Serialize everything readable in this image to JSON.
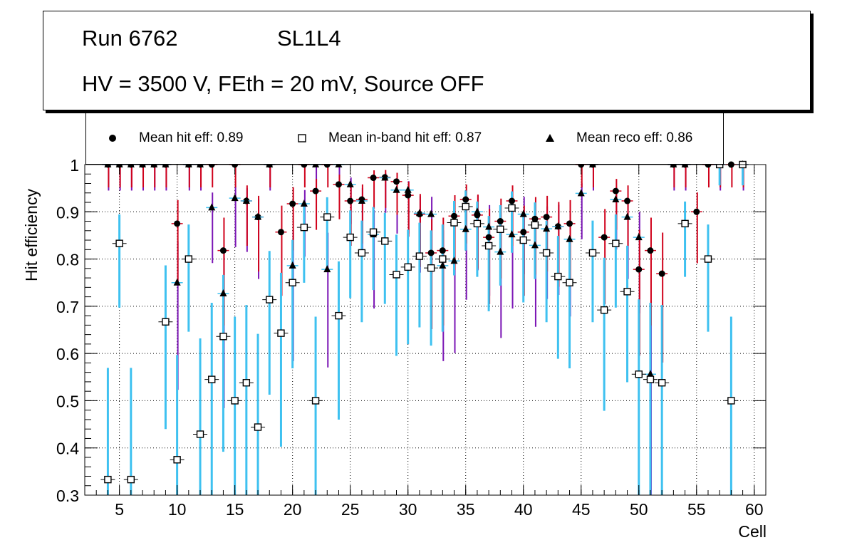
{
  "header": {
    "run": "Run 6762",
    "layer": "SL1L4",
    "conditions": "HV = 3500 V, FEth = 20 mV, Source OFF"
  },
  "legend": {
    "hit": "Mean hit  eff: 0.89",
    "inband": "Mean in-band hit eff: 0.87",
    "reco": "Mean reco eff: 0.86"
  },
  "chart_data": {
    "type": "scatter",
    "title": "",
    "xlabel": "Cell",
    "ylabel": "Hit efficiency",
    "xlim": [
      2,
      61
    ],
    "ylim": [
      0.3,
      1.0
    ],
    "x_ticks": [
      5,
      10,
      15,
      20,
      25,
      30,
      35,
      40,
      45,
      50,
      55,
      60
    ],
    "y_ticks": [
      0.3,
      0.4,
      0.5,
      0.6,
      0.7,
      0.8,
      0.9,
      1
    ],
    "grid": true,
    "colors": {
      "hit_err": "#d0021b",
      "inband_err": "#3ec1f0",
      "reco_err": "#7b15b5",
      "marker": "#000000",
      "marker_fill": "#ffffff"
    },
    "series": [
      {
        "name": "Mean hit eff",
        "marker": "circle",
        "x": [
          4,
          5,
          6,
          7,
          8,
          9,
          10,
          11,
          12,
          13,
          14,
          15,
          16,
          17,
          18,
          19,
          20,
          21,
          22,
          23,
          24,
          25,
          26,
          27,
          28,
          29,
          30,
          31,
          32,
          33,
          34,
          35,
          36,
          37,
          38,
          39,
          40,
          41,
          42,
          43,
          44,
          45,
          46,
          47,
          48,
          49,
          50,
          51,
          52,
          53,
          54,
          55,
          56,
          57,
          58,
          59
        ],
        "y": [
          1,
          1,
          1,
          1,
          1,
          1,
          0.875,
          1,
          1,
          1,
          0.818,
          1,
          0.923,
          0.889,
          1,
          0.857,
          0.917,
          1,
          0.944,
          1,
          0.958,
          0.923,
          0.926,
          0.972,
          0.973,
          0.964,
          0.935,
          0.895,
          0.813,
          0.818,
          0.891,
          0.926,
          0.893,
          0.846,
          0.88,
          0.923,
          0.857,
          0.885,
          0.889,
          0.869,
          0.875,
          1,
          1,
          0.846,
          0.944,
          0.923,
          0.778,
          0.818,
          0.769,
          1,
          1,
          0.9,
          1,
          1,
          1,
          1
        ]
      },
      {
        "name": "Mean in-band hit eff",
        "marker": "open-square",
        "x": [
          4,
          5,
          6,
          9,
          10,
          11,
          12,
          13,
          14,
          15,
          16,
          17,
          18,
          19,
          20,
          21,
          22,
          23,
          24,
          25,
          26,
          27,
          28,
          29,
          30,
          31,
          32,
          33,
          34,
          35,
          36,
          37,
          38,
          39,
          40,
          41,
          42,
          43,
          44,
          46,
          47,
          48,
          49,
          50,
          51,
          52,
          54,
          56,
          57,
          58,
          59
        ],
        "y": [
          0.333,
          0.833,
          0.333,
          0.667,
          0.375,
          0.8,
          0.429,
          0.545,
          0.636,
          0.5,
          0.538,
          0.444,
          0.714,
          0.643,
          0.75,
          0.867,
          0.5,
          0.889,
          0.68,
          0.846,
          0.813,
          0.857,
          0.838,
          0.767,
          0.783,
          0.806,
          0.781,
          0.8,
          0.877,
          0.911,
          0.875,
          0.828,
          0.863,
          0.908,
          0.84,
          0.872,
          0.813,
          0.763,
          0.75,
          0.813,
          0.692,
          0.833,
          0.731,
          0.556,
          0.545,
          0.538,
          0.875,
          0.8,
          1,
          0.5,
          1
        ]
      },
      {
        "name": "Mean reco eff",
        "marker": "triangle",
        "x": [
          4,
          5,
          6,
          7,
          8,
          9,
          10,
          11,
          12,
          13,
          14,
          15,
          16,
          17,
          18,
          20,
          21,
          22,
          23,
          24,
          25,
          26,
          27,
          28,
          29,
          30,
          31,
          32,
          33,
          34,
          35,
          36,
          37,
          38,
          39,
          40,
          41,
          42,
          43,
          44,
          45,
          46,
          48,
          49,
          50,
          51,
          53,
          54,
          57,
          59
        ],
        "y": [
          1,
          1,
          1,
          1,
          1,
          1,
          0.75,
          1,
          1,
          0.909,
          0.727,
          0.929,
          0.923,
          0.889,
          1,
          0.786,
          0.917,
          1,
          0.778,
          1,
          0.958,
          0.923,
          0.852,
          0.972,
          0.946,
          0.946,
          0.897,
          0.895,
          0.786,
          0.796,
          0.863,
          0.9,
          0.868,
          0.815,
          0.852,
          0.895,
          0.829,
          0.864,
          0.869,
          0.842,
          0.939,
          1,
          0.926,
          0.889,
          0.846,
          0.556,
          1,
          1,
          1,
          1
        ]
      }
    ]
  }
}
